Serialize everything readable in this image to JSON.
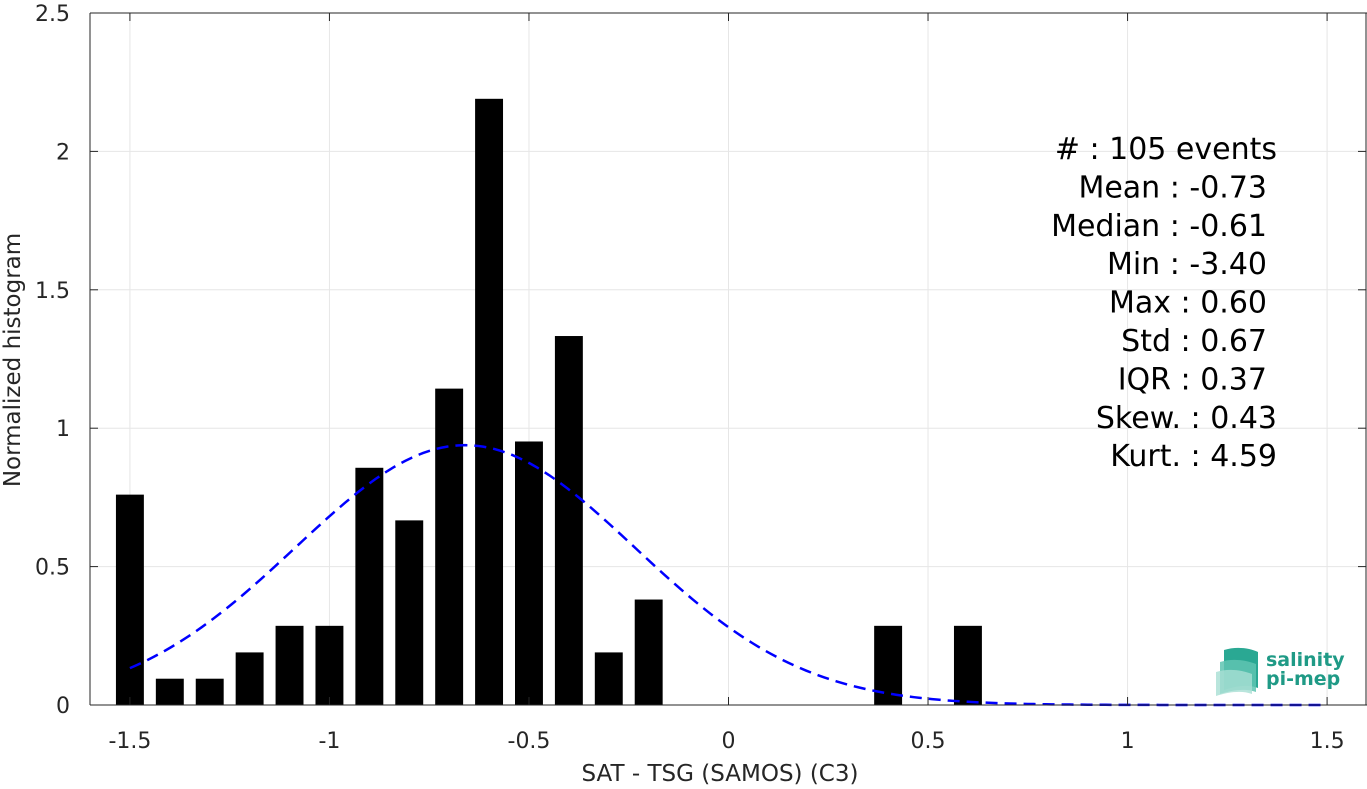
{
  "chart_data": {
    "type": "bar",
    "xlabel": "SAT - TSG (SAMOS) (C3)",
    "ylabel": "Normalized histogram",
    "xlim": [
      -1.6,
      1.6
    ],
    "ylim": [
      0,
      2.5
    ],
    "grid": true,
    "x_ticks": [
      -1.5,
      -1,
      -0.5,
      0,
      0.5,
      1,
      1.5
    ],
    "x_tick_labels": [
      "-1.5",
      "-1",
      "-0.5",
      "0",
      "0.5",
      "1",
      "1.5"
    ],
    "y_ticks": [
      0,
      0.5,
      1,
      1.5,
      2,
      2.5
    ],
    "y_tick_labels": [
      "0",
      "0.5",
      "1",
      "1.5",
      "2",
      "2.5"
    ],
    "bar_width": 0.07,
    "bars": {
      "x": [
        -1.5,
        -1.4,
        -1.3,
        -1.2,
        -1.1,
        -1.0,
        -0.9,
        -0.8,
        -0.7,
        -0.6,
        -0.5,
        -0.4,
        -0.3,
        -0.2,
        0.4,
        0.6
      ],
      "values": [
        0.76,
        0.095,
        0.095,
        0.19,
        0.286,
        0.286,
        0.857,
        0.667,
        1.143,
        2.19,
        0.952,
        1.333,
        0.19,
        0.381,
        0.286,
        0.286
      ],
      "color": "#000000"
    },
    "fit_curve": {
      "style": "dashed",
      "color": "#0000ff",
      "mean": -0.66,
      "std": 0.425,
      "x_range": [
        -1.5,
        1.5
      ]
    },
    "stats": [
      "#  : 105 events",
      "Mean : -0.73",
      "Median : -0.61",
      "Min : -3.40",
      "Max : 0.60",
      "Std : 0.67",
      "IQR : 0.37",
      "Skew. : 0.43",
      "Kurt. : 4.59"
    ]
  },
  "logo": {
    "line1": "salinity",
    "line2": "pi-mep",
    "color": "#1f9a86"
  }
}
